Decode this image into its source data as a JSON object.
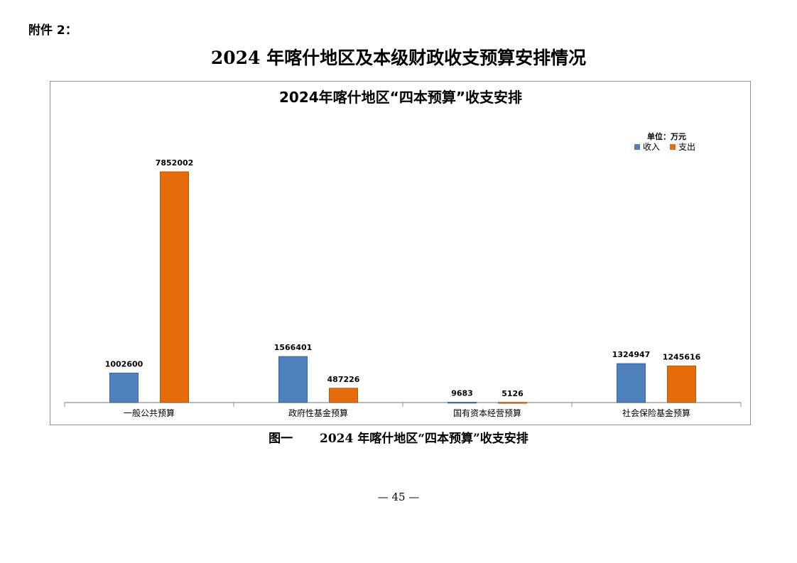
{
  "attachment_label": "附件 2：",
  "document_title": "2024 年喀什地区及本级财政收支预算安排情况",
  "caption": {
    "figure_no": "图一",
    "text": "2024 年喀什地区“四本预算”收支安排"
  },
  "page_number": "— 45 —",
  "colors": {
    "income": "#4f81bd",
    "expenditure": "#e46c0a",
    "axis": "#8f8f8f"
  },
  "chart_data": {
    "type": "bar",
    "title": "2024年喀什地区“四本预算”收支安排",
    "unit_label": "单位：万元",
    "legend_position": "top-right",
    "grid": false,
    "categories": [
      "一般公共预算",
      "政府性基金预算",
      "国有资本经营预算",
      "社会保险基金预算"
    ],
    "series": [
      {
        "name": "收入",
        "values": [
          1002600,
          1566401,
          9683,
          1324947
        ]
      },
      {
        "name": "支出",
        "values": [
          7852002,
          487226,
          5126,
          1245616
        ]
      }
    ],
    "ylim": [
      0,
      7852002
    ]
  }
}
